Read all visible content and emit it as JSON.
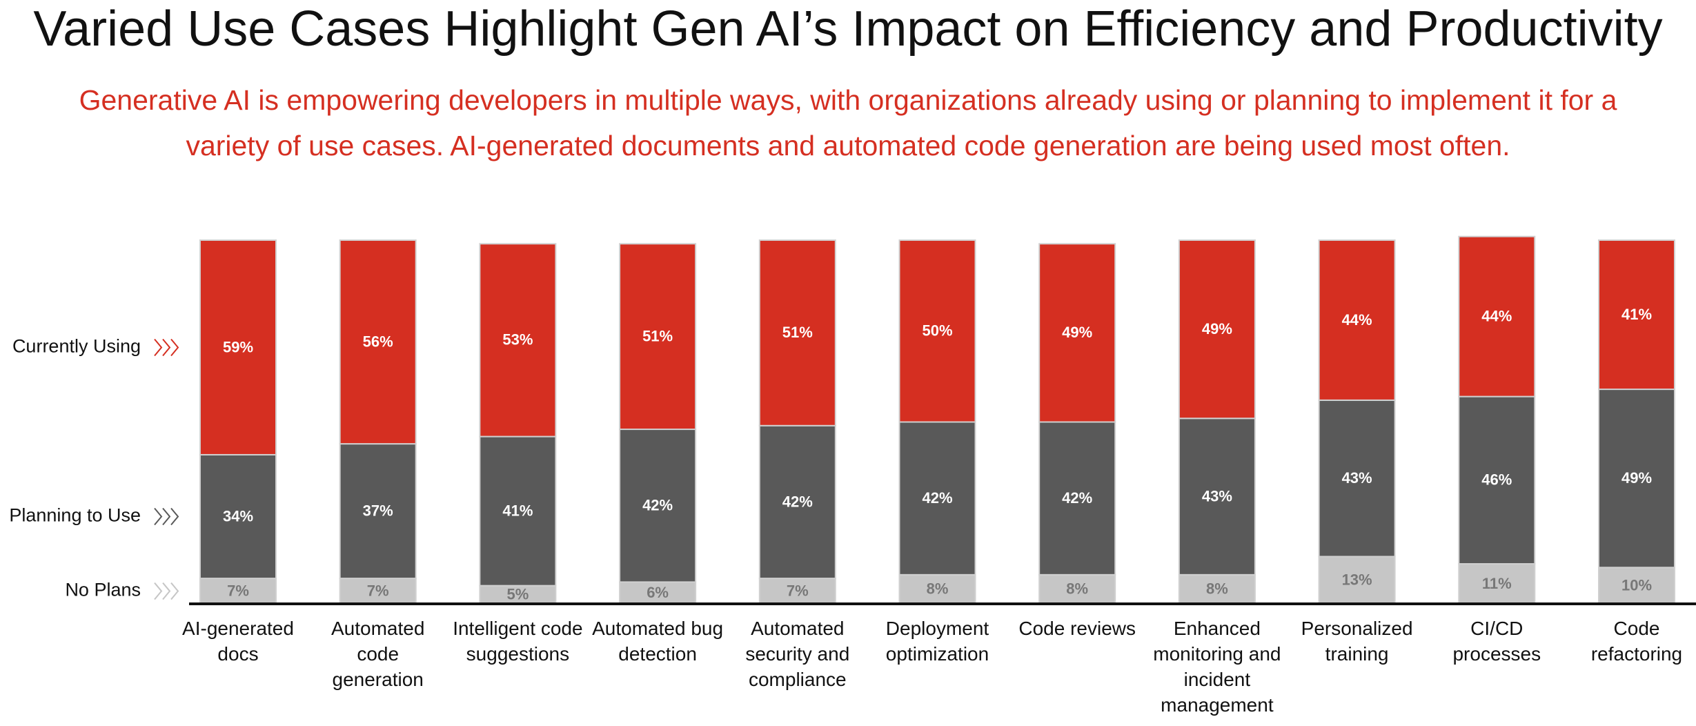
{
  "chart_data": {
    "type": "stacked-bar",
    "title": "Varied Use Cases Highlight Gen AI’s Impact on Efficiency and Productivity",
    "subtitle": "Generative AI is empowering developers in multiple ways, with organizations already using or planning to implement it for a variety of use cases. AI-generated documents and automated code generation are being used most often.",
    "categories": [
      "AI-generated docs",
      "Automated code generation",
      "Intelligent code suggestions",
      "Automated bug detection",
      "Automated security and compliance",
      "Deployment optimization",
      "Code reviews",
      "Enhanced monitoring and incident management",
      "Personalized training",
      "CI/CD processes",
      "Code refactoring"
    ],
    "ylim": [
      0,
      100
    ],
    "series": [
      {
        "name": "No Plans",
        "color": "#c6c6c6",
        "values": [
          7,
          7,
          5,
          6,
          7,
          8,
          8,
          8,
          13,
          11,
          10
        ],
        "value_labels": [
          "7%",
          "7%",
          "5%",
          "6%",
          "7%",
          "8%",
          "8%",
          "8%",
          "13%",
          "11%",
          "10%"
        ]
      },
      {
        "name": "Planning to Use",
        "color": "#595959",
        "values": [
          34,
          37,
          41,
          42,
          42,
          42,
          42,
          43,
          43,
          46,
          49
        ],
        "value_labels": [
          "34%",
          "37%",
          "41%",
          "42%",
          "42%",
          "42%",
          "42%",
          "43%",
          "43%",
          "46%",
          "49%"
        ]
      },
      {
        "name": "Currently Using",
        "color": "#d52f21",
        "values": [
          59,
          56,
          53,
          51,
          51,
          50,
          49,
          49,
          44,
          44,
          41
        ],
        "value_labels": [
          "59%",
          "56%",
          "53%",
          "51%",
          "51%",
          "50%",
          "49%",
          "49%",
          "44%",
          "44%",
          "41%"
        ]
      }
    ]
  }
}
